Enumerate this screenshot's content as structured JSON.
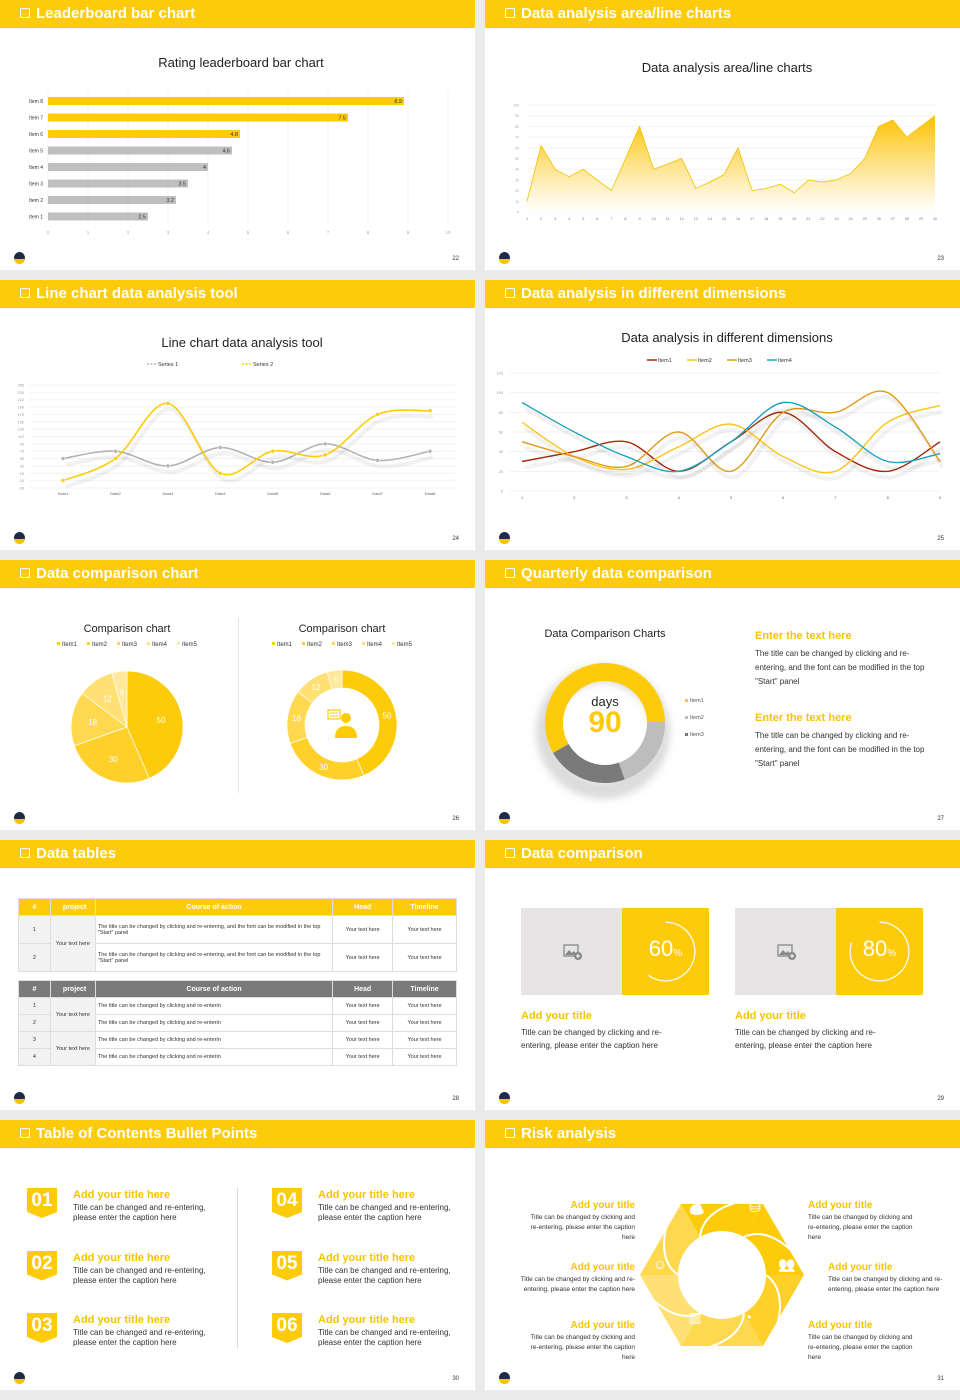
{
  "slides": [
    {
      "title": "Leaderboard bar chart",
      "page": "22"
    },
    {
      "title": "Data analysis area/line charts",
      "page": "23"
    },
    {
      "title": "Line chart data analysis tool",
      "page": "24"
    },
    {
      "title": "Data analysis in different dimensions",
      "page": "25"
    },
    {
      "title": "Data comparison chart",
      "page": "26"
    },
    {
      "title": "Quarterly data comparison",
      "page": "27"
    },
    {
      "title": "Data tables",
      "page": "28"
    },
    {
      "title": "Data comparison",
      "page": "29"
    },
    {
      "title": "Table of Contents Bullet Points",
      "page": "30"
    },
    {
      "title": "Risk analysis",
      "page": "31"
    }
  ],
  "colors": {
    "accent": "#fecb0a",
    "gray_bar": "#bfbfbf",
    "dark_gray": "#7a7a7a"
  },
  "chart_data": [
    {
      "type": "bar",
      "title": "Rating leaderboard bar chart",
      "orientation": "horizontal",
      "categories": [
        "Item 8",
        "Item 7",
        "Item 6",
        "Item 5",
        "Item 4",
        "Item 3",
        "Item 2",
        "Item 1"
      ],
      "values": [
        8.9,
        7.5,
        4.8,
        4.6,
        4,
        3.5,
        3.2,
        2.5
      ],
      "highlighted": [
        "Item 8",
        "Item 7",
        "Item 6"
      ],
      "xlim": [
        0,
        10
      ],
      "xticks": [
        "0",
        "1",
        "2",
        "3",
        "4",
        "5",
        "6",
        "7",
        "8",
        "9",
        "10"
      ],
      "grid": true
    },
    {
      "type": "area",
      "title": "Data analysis area/line charts",
      "x": [
        1,
        2,
        3,
        4,
        5,
        6,
        7,
        8,
        9,
        10,
        11,
        12,
        13,
        14,
        15,
        16,
        17,
        18,
        19,
        20,
        21,
        22,
        23,
        24,
        25,
        26,
        27,
        28,
        29,
        30
      ],
      "values": [
        10,
        62,
        40,
        33,
        40,
        30,
        20,
        50,
        80,
        40,
        45,
        50,
        22,
        28,
        35,
        60,
        20,
        22,
        26,
        18,
        30,
        28,
        30,
        36,
        50,
        80,
        86,
        70,
        80,
        90
      ],
      "ylim": [
        0,
        100
      ],
      "yticks": [
        "0",
        "10",
        "20",
        "30",
        "40",
        "50",
        "60",
        "70",
        "80",
        "90",
        "100"
      ],
      "grid": true
    },
    {
      "type": "line",
      "title": "Line chart data analysis tool",
      "categories": [
        "Data1",
        "Data2",
        "Data3",
        "Data4",
        "Data5",
        "Data6",
        "Data7",
        "Data8"
      ],
      "series": [
        {
          "name": "Series 1",
          "color": "#b3b3b3",
          "values": [
            50,
            70,
            30,
            80,
            40,
            90,
            45,
            70
          ]
        },
        {
          "name": "Series 2",
          "color": "#fecb0a",
          "values": [
            -10,
            50,
            200,
            10,
            70,
            60,
            170,
            180
          ]
        }
      ],
      "ylim": [
        -30,
        250
      ],
      "yticks": [
        "-30",
        "-10",
        "10",
        "30",
        "50",
        "70",
        "90",
        "110",
        "130",
        "150",
        "170",
        "190",
        "210",
        "230",
        "250"
      ],
      "legend": "top",
      "grid": true
    },
    {
      "type": "line",
      "title": "Data analysis in different dimensions",
      "x": [
        "1",
        "2",
        "3",
        "4",
        "5",
        "6",
        "7",
        "8",
        "9"
      ],
      "series": [
        {
          "name": "Item1",
          "color": "#a52a0c",
          "values": [
            30,
            40,
            50,
            20,
            50,
            80,
            40,
            20,
            50
          ]
        },
        {
          "name": "Item2",
          "color": "#fec319",
          "values": [
            70,
            35,
            22,
            45,
            68,
            35,
            20,
            70,
            87
          ]
        },
        {
          "name": "Item3",
          "color": "#e09a1a",
          "values": [
            50,
            35,
            25,
            60,
            20,
            80,
            80,
            100,
            30
          ]
        },
        {
          "name": "Item4",
          "color": "#1da2bf",
          "values": [
            90,
            60,
            35,
            20,
            50,
            90,
            65,
            30,
            38
          ]
        }
      ],
      "ylim": [
        0,
        120
      ],
      "yticks": [
        "0",
        "20",
        "40",
        "60",
        "80",
        "100",
        "120"
      ],
      "legend": "top",
      "grid": true
    },
    {
      "type": "pie",
      "title": "Comparison chart",
      "categories": [
        "Item1",
        "Item2",
        "Item3",
        "Item4",
        "Item5"
      ],
      "values": [
        50,
        30,
        18,
        12,
        5
      ],
      "colors": [
        "#fecb0a",
        "#fed12a",
        "#fed84f",
        "#fee074",
        "#fee89a"
      ],
      "legend": "top"
    },
    {
      "type": "pie",
      "variant": "donut",
      "title": "Comparison chart",
      "categories": [
        "Item1",
        "Item2",
        "Item3",
        "Item4",
        "Item5"
      ],
      "values": [
        50,
        30,
        18,
        12,
        5
      ],
      "colors": [
        "#fecb0a",
        "#fed12a",
        "#fed84f",
        "#fee074",
        "#fee89a"
      ],
      "center_icon": "presenter-icon",
      "legend": "top"
    },
    {
      "type": "pie",
      "variant": "donut",
      "title": "Data Comparison Charts",
      "categories": [
        "Item1",
        "Item2",
        "Item3"
      ],
      "values": [
        58,
        20,
        22
      ],
      "colors": [
        "#fecb0a",
        "#bdbdbd",
        "#7a7a7a"
      ],
      "center_label": "days",
      "center_value": "90",
      "legend": "right"
    }
  ],
  "quarterly": {
    "blocks": [
      {
        "title": "Enter the text here",
        "text": "The title can be changed by clicking and re-entering, and the font can be modified in the top \"Start\" panel"
      },
      {
        "title": "Enter the text here",
        "text": "The title can be changed by clicking and re-entering, and the font can be modified in the top \"Start\" panel"
      }
    ]
  },
  "tables": {
    "headers": [
      "#",
      "project",
      "Course of action",
      "Head",
      "Timeline"
    ],
    "table1": {
      "project": "Your text here",
      "rows": [
        {
          "num": "1",
          "course": "The title can be changed by clicking and re-entering, and the font can be modified in the top \"Start\" panel",
          "head": "Your text here",
          "timeline": "Your text here"
        },
        {
          "num": "2",
          "course": "The title can be changed by clicking and re-entering, and the font can be modified in the top \"Start\" panel",
          "head": "Your text here",
          "timeline": "Your text here"
        }
      ]
    },
    "table2": {
      "projects": [
        "Your text here",
        "Your text here"
      ],
      "rows": [
        {
          "num": "1",
          "course": "The title can be changed by clicking and re-enterin",
          "head": "Your text here",
          "timeline": "Your text here"
        },
        {
          "num": "2",
          "course": "The title can be changed by clicking and re-enterin",
          "head": "Your text here",
          "timeline": "Your text here"
        },
        {
          "num": "3",
          "course": "The title can be changed by clicking and re-enterin",
          "head": "Your text here",
          "timeline": "Your text here"
        },
        {
          "num": "4",
          "course": "The title can be changed by clicking and re-enterin",
          "head": "Your text here",
          "timeline": "Your text here"
        }
      ]
    }
  },
  "comparison": {
    "cards": [
      {
        "percent": 60,
        "value": "60",
        "unit": "%",
        "title": "Add your title",
        "text": "Title can be changed by clicking and re-entering, please enter the caption here",
        "icon": "add-image-icon"
      },
      {
        "percent": 80,
        "value": "80",
        "unit": "%",
        "title": "Add your title",
        "text": "Title can be changed by clicking and re-entering, please enter the caption here",
        "icon": "add-image-icon"
      }
    ]
  },
  "toc": {
    "items": [
      {
        "num": "01",
        "title": "Add your title here",
        "text": "Title can be changed and re-entering, please enter the caption here"
      },
      {
        "num": "02",
        "title": "Add your title here",
        "text": "Title can be changed and re-entering, please enter the caption here"
      },
      {
        "num": "03",
        "title": "Add your title here",
        "text": "Title can be changed and re-entering, please enter the caption here"
      },
      {
        "num": "04",
        "title": "Add your title here",
        "text": "Title can be changed and re-entering, please enter the caption here"
      },
      {
        "num": "05",
        "title": "Add your title here",
        "text": "Title can be changed and re-entering, please enter the caption here"
      },
      {
        "num": "06",
        "title": "Add your title here",
        "text": "Title can be changed and re-entering, please enter the caption here"
      }
    ]
  },
  "risk": {
    "items": [
      {
        "title": "Add your title",
        "text": "Title can be changed by clicking and re-entering, please enter the caption here",
        "icon": "money-bag-icon"
      },
      {
        "title": "Add your title",
        "text": "Title can be changed by clicking and re-entering, please enter the caption here",
        "icon": "coins-icon"
      },
      {
        "title": "Add your title",
        "text": "Title can be changed by clicking and re-entering, please enter the caption here",
        "icon": "user-icon"
      },
      {
        "title": "Add your title",
        "text": "Title can be changed by clicking and re-entering, please enter the caption here",
        "icon": "team-icon"
      },
      {
        "title": "Add your title",
        "text": "Title can be changed by clicking and re-entering, please enter the caption here",
        "icon": "building-icon"
      },
      {
        "title": "Add your title",
        "text": "Title can be changed by clicking and re-entering, please enter the caption here",
        "icon": "pie-chart-icon"
      }
    ]
  }
}
